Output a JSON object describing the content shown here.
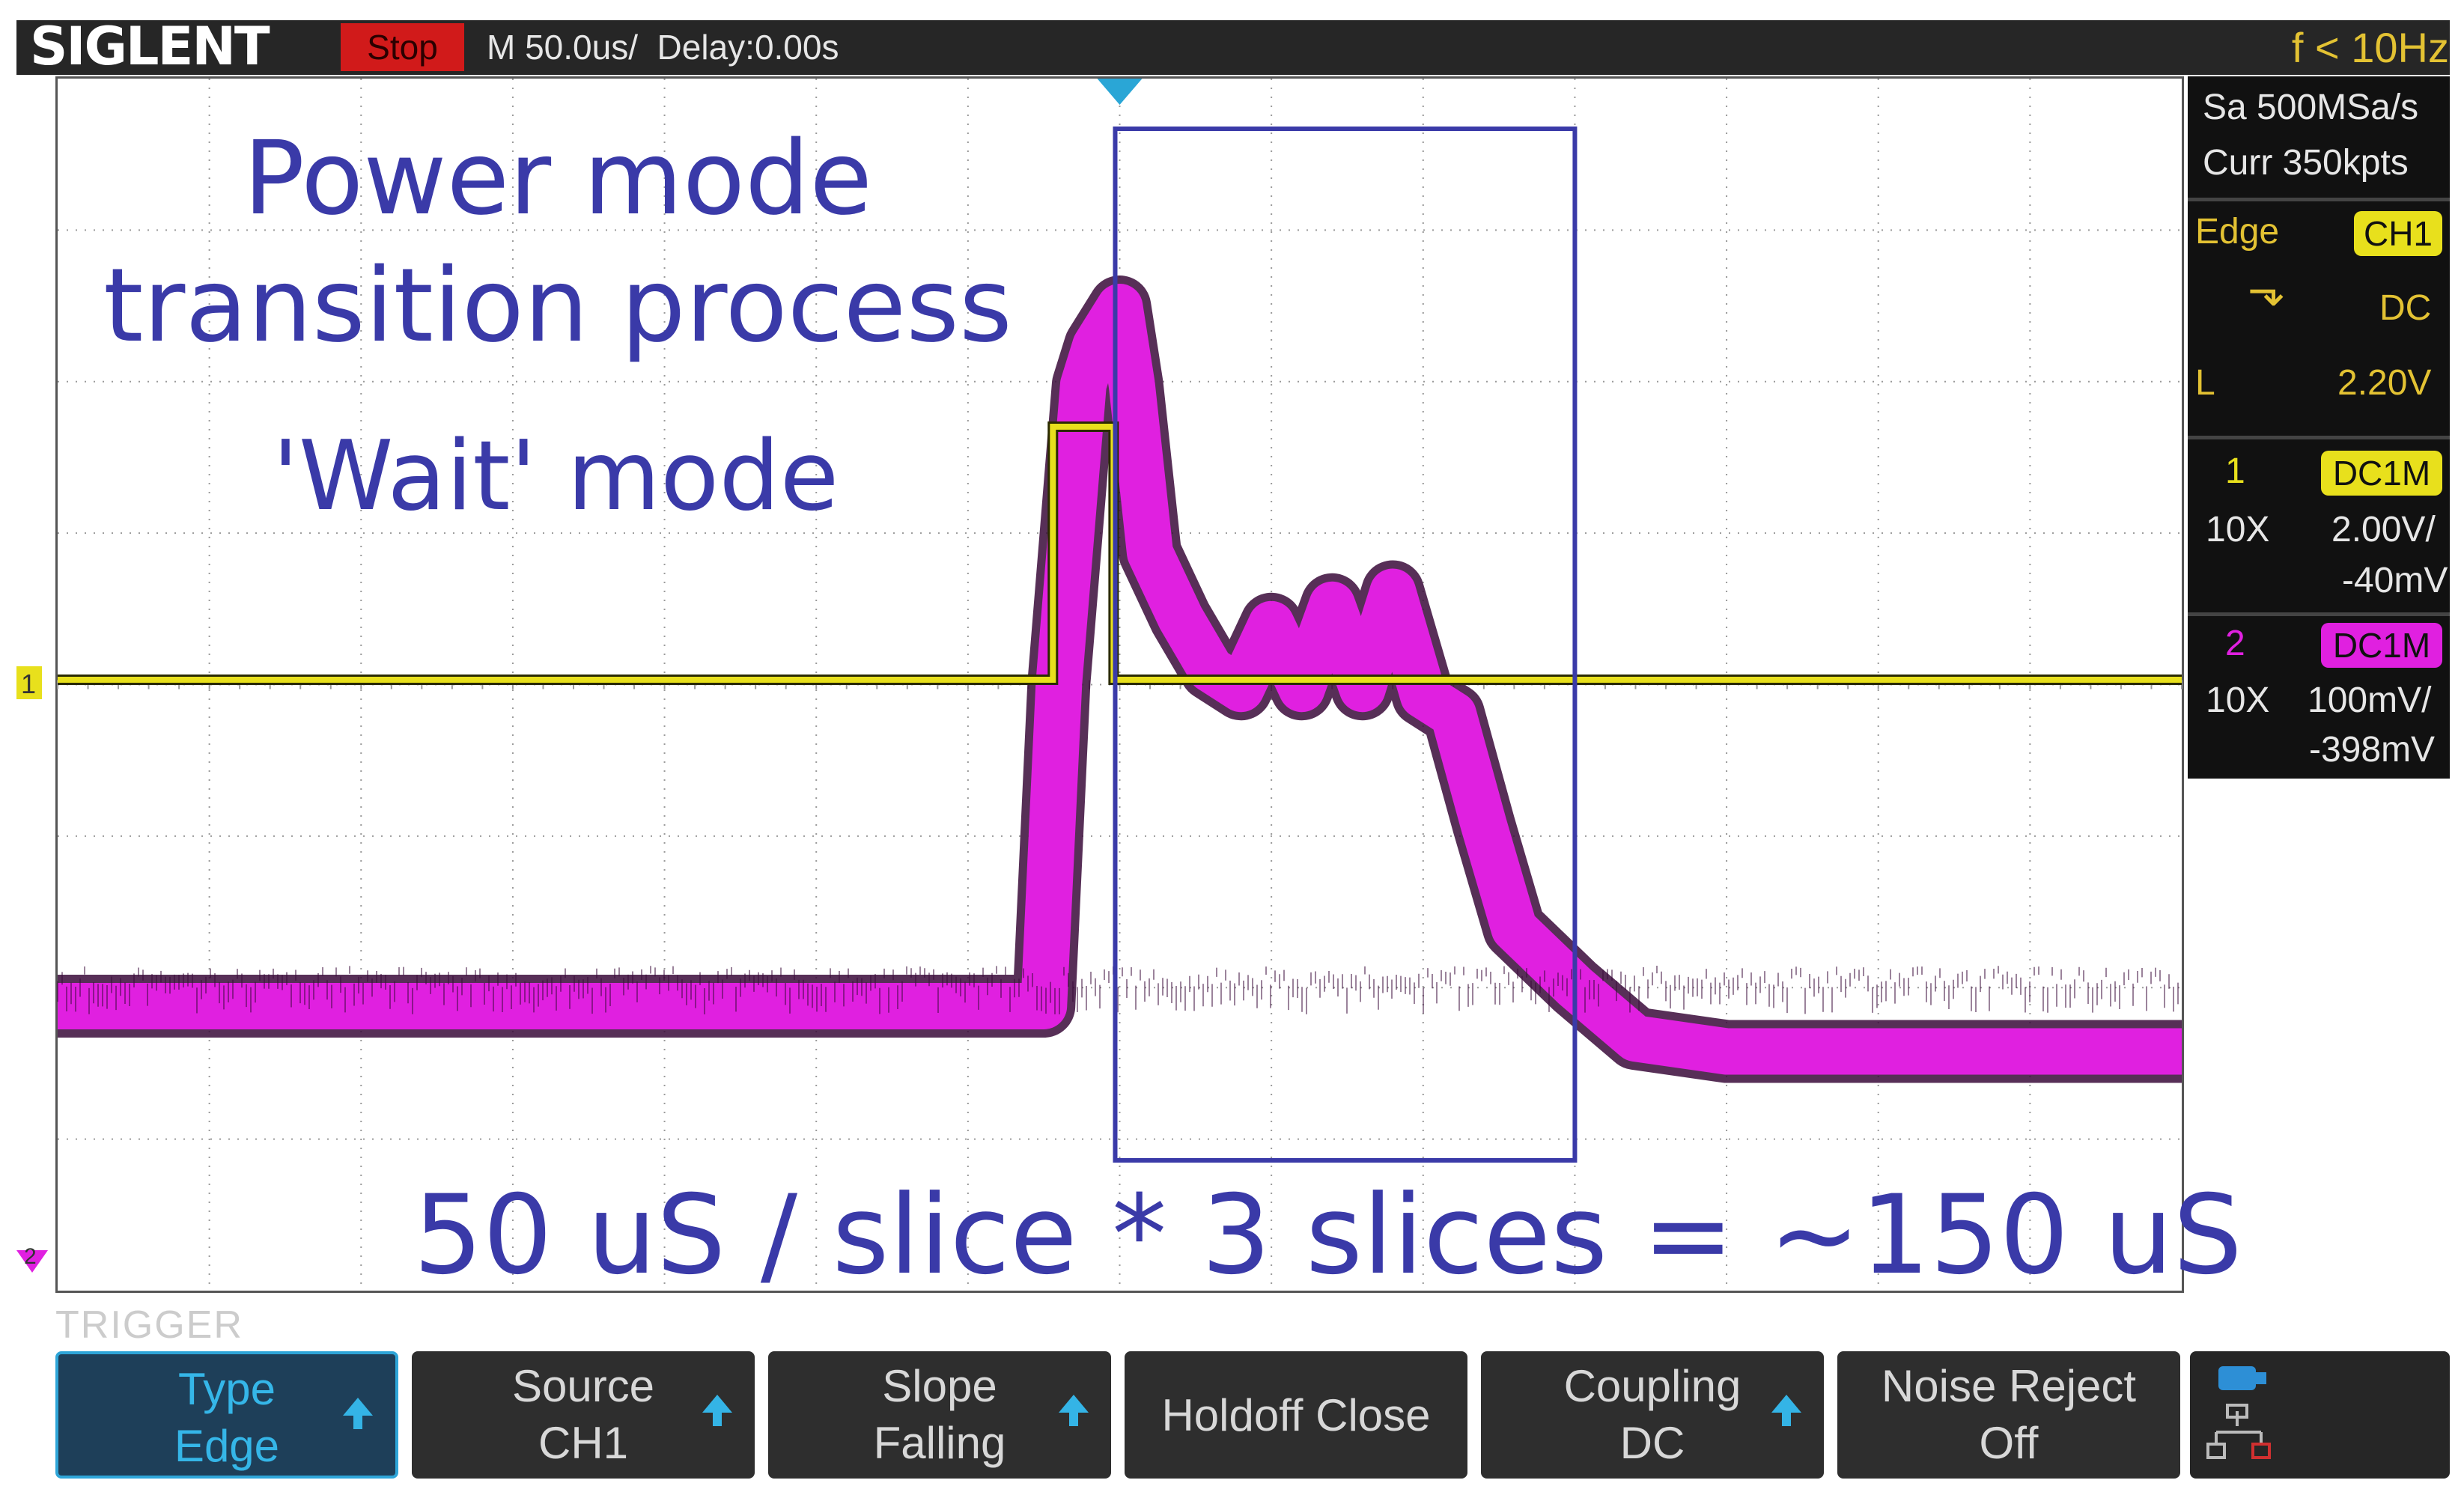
{
  "brand": "SIGLENT",
  "status": "Stop",
  "timebase_text": "M 50.0us/  Delay:0.00s",
  "trigger_freq": "f < 10Hz",
  "acquisition": {
    "sample_rate": "Sa 500MSa/s",
    "memory": "Curr 350kpts"
  },
  "trigger_panel": {
    "type": "Edge",
    "source": "CH1",
    "coupling": "DC",
    "level_label": "L",
    "level": "2.20V"
  },
  "channels": [
    {
      "num": "1",
      "coupling": "DC1M",
      "probe": "10X",
      "scale": "2.00V/",
      "offset": "-40mV",
      "color": "#e8e01c"
    },
    {
      "num": "2",
      "coupling": "DC1M",
      "probe": "10X",
      "scale": "100mV/",
      "offset": "-398mV",
      "color": "#e020e0"
    }
  ],
  "annotations": {
    "line1": "Power mode",
    "line2": "transition process",
    "line3": "'Wait' mode",
    "formula": "50 uS / slice * 3 slices = ~150 uS",
    "color": "#3a3aa8"
  },
  "markers": {
    "ch1": "1",
    "ch2": "2"
  },
  "menu_label": "TRIGGER",
  "softkeys": [
    {
      "top": "Type",
      "bottom": "Edge",
      "arrow": true,
      "selected": true
    },
    {
      "top": "Source",
      "bottom": "CH1",
      "arrow": true,
      "selected": false
    },
    {
      "top": "Slope",
      "bottom": "Falling",
      "arrow": true,
      "selected": false
    },
    {
      "single": "Holdoff Close",
      "arrow": false,
      "selected": false
    },
    {
      "top": "Coupling",
      "bottom": "DC",
      "arrow": true,
      "selected": false
    },
    {
      "top": "Noise Reject",
      "bottom": "Off",
      "arrow": false,
      "selected": false
    }
  ],
  "extra_key_icon": "network-icon",
  "chart_data": {
    "type": "line",
    "xlabel": "",
    "ylabel": "",
    "x_unit": "us",
    "x_divisions": 14,
    "y_divisions": 8,
    "xlim": [
      -350,
      350
    ],
    "series": [
      {
        "name": "1",
        "color": "#e8e01c",
        "x": [
          -350,
          -22,
          -22,
          -2,
          -2,
          350
        ],
        "y": [
          0.0,
          0.0,
          3.3,
          3.3,
          0.0,
          0.0
        ]
      },
      {
        "name": "2",
        "color": "#e020e0",
        "x": [
          -350,
          -25,
          -20,
          -12,
          -8,
          0,
          4,
          10,
          20,
          30,
          40,
          50,
          60,
          70,
          80,
          90,
          100,
          110,
          120,
          130,
          150,
          170,
          200,
          350
        ],
        "y": [
          0.0,
          0.0,
          0.5,
          0.96,
          1.02,
          1.08,
          0.96,
          0.7,
          0.6,
          0.52,
          0.49,
          0.59,
          0.49,
          0.62,
          0.49,
          0.64,
          0.48,
          0.45,
          0.28,
          0.12,
          0.03,
          -0.05,
          -0.07,
          -0.07
        ]
      }
    ],
    "annotation_box_x": [
      0,
      150
    ]
  }
}
